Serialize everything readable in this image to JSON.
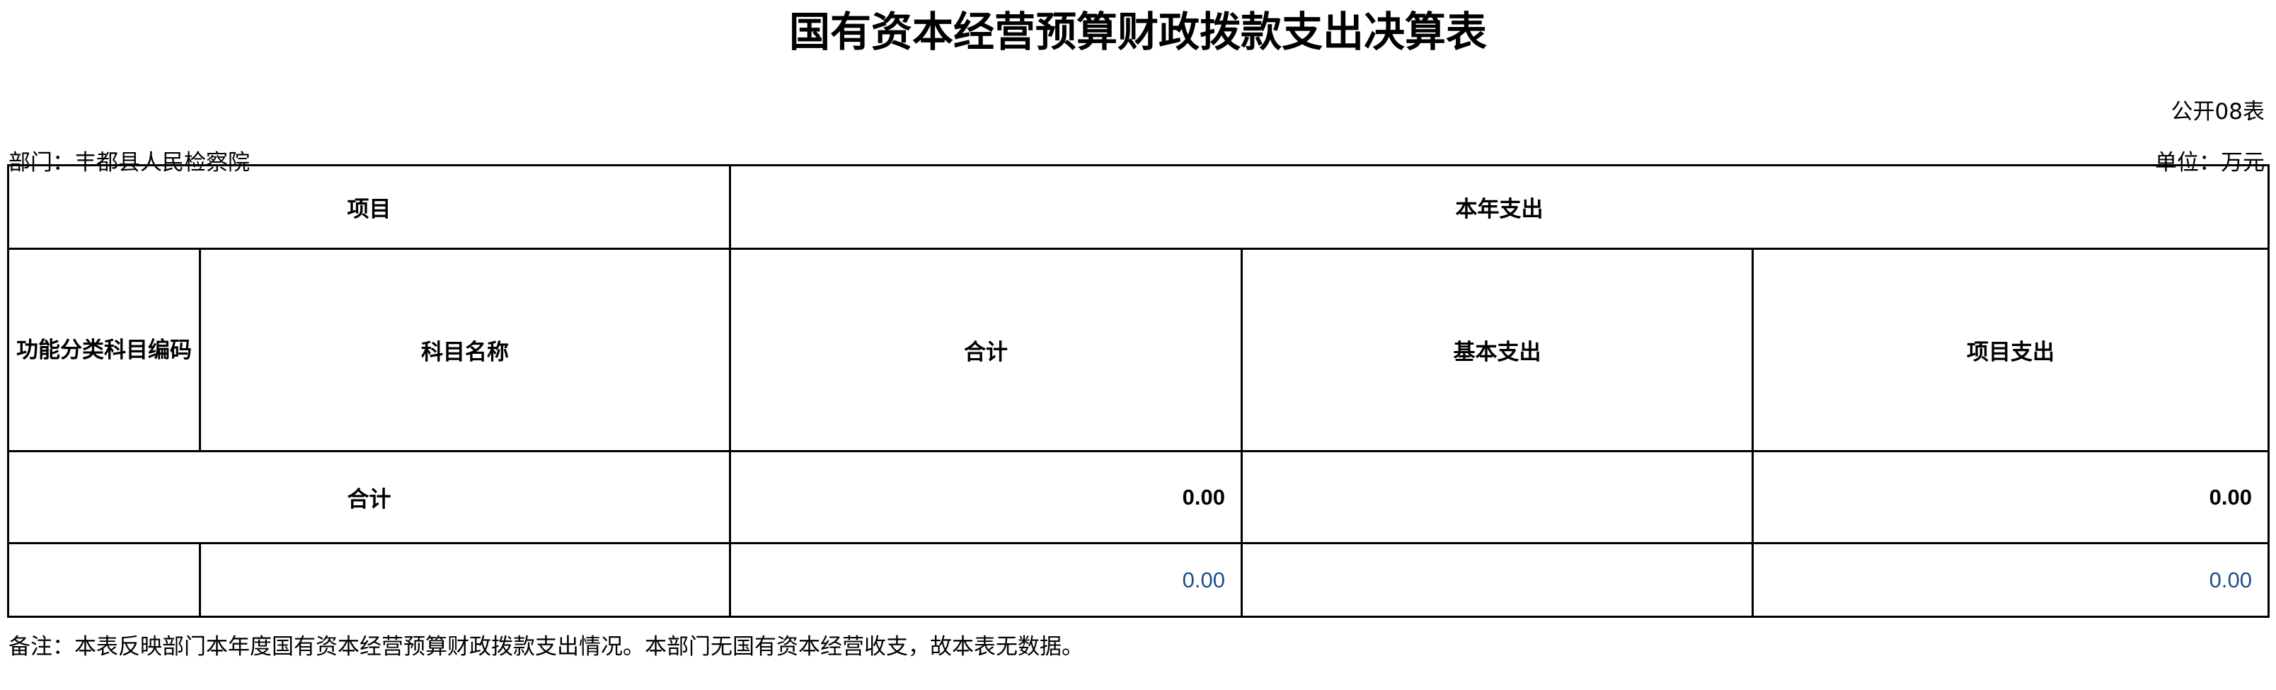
{
  "title": "国有资本经营预算财政拨款支出决算表",
  "form_number": "公开08表",
  "department": "部门：丰都县人民检察院",
  "unit": "单位：万元",
  "table": {
    "header_group_left": "项目",
    "header_group_right": "本年支出",
    "columns": [
      "功能分类科目编码",
      "科目名称",
      "合计",
      "基本支出",
      "项目支出"
    ],
    "total_row": {
      "label": "合计",
      "total": "0.00",
      "basic": "",
      "project": "0.00"
    },
    "rows": [
      {
        "code": "",
        "name": "",
        "total": "0.00",
        "basic": "",
        "project": "0.00"
      }
    ]
  },
  "note": "备注：本表反映部门本年度国有资本经营预算财政拨款支出情况。本部门无国有资本经营收支，故本表无数据。"
}
